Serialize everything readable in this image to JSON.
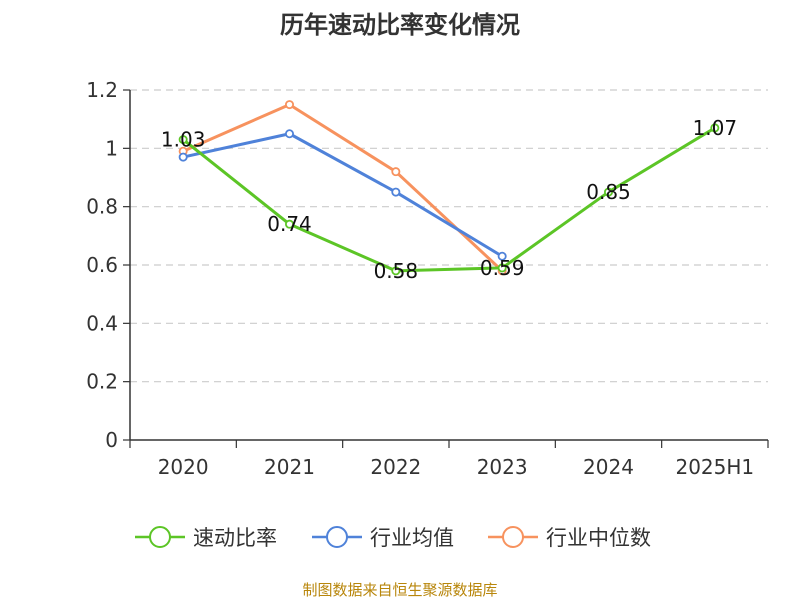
{
  "chart_data": {
    "type": "line",
    "title": "历年速动比率变化情况",
    "categories": [
      "2020",
      "2021",
      "2022",
      "2023",
      "2024",
      "2025H1"
    ],
    "ylim": [
      0,
      1.2
    ],
    "yticks": [
      "0",
      "0.2",
      "0.4",
      "0.6",
      "0.8",
      "1",
      "1.2"
    ],
    "grid": true,
    "legend_position": "bottom",
    "series": [
      {
        "name": "速动比率",
        "color": "#5cc526",
        "values": [
          1.03,
          0.74,
          0.58,
          0.59,
          0.85,
          1.07
        ],
        "data_labels": [
          "1.03",
          "0.74",
          "0.58",
          "0.59",
          "0.85",
          "1.07"
        ]
      },
      {
        "name": "行业均值",
        "color": "#4f82d9",
        "values": [
          0.97,
          1.05,
          0.85,
          0.63,
          null,
          null
        ]
      },
      {
        "name": "行业中位数",
        "color": "#f7925e",
        "values": [
          0.99,
          1.15,
          0.92,
          0.58,
          null,
          null
        ]
      }
    ],
    "source": "制图数据来自恒生聚源数据库"
  }
}
